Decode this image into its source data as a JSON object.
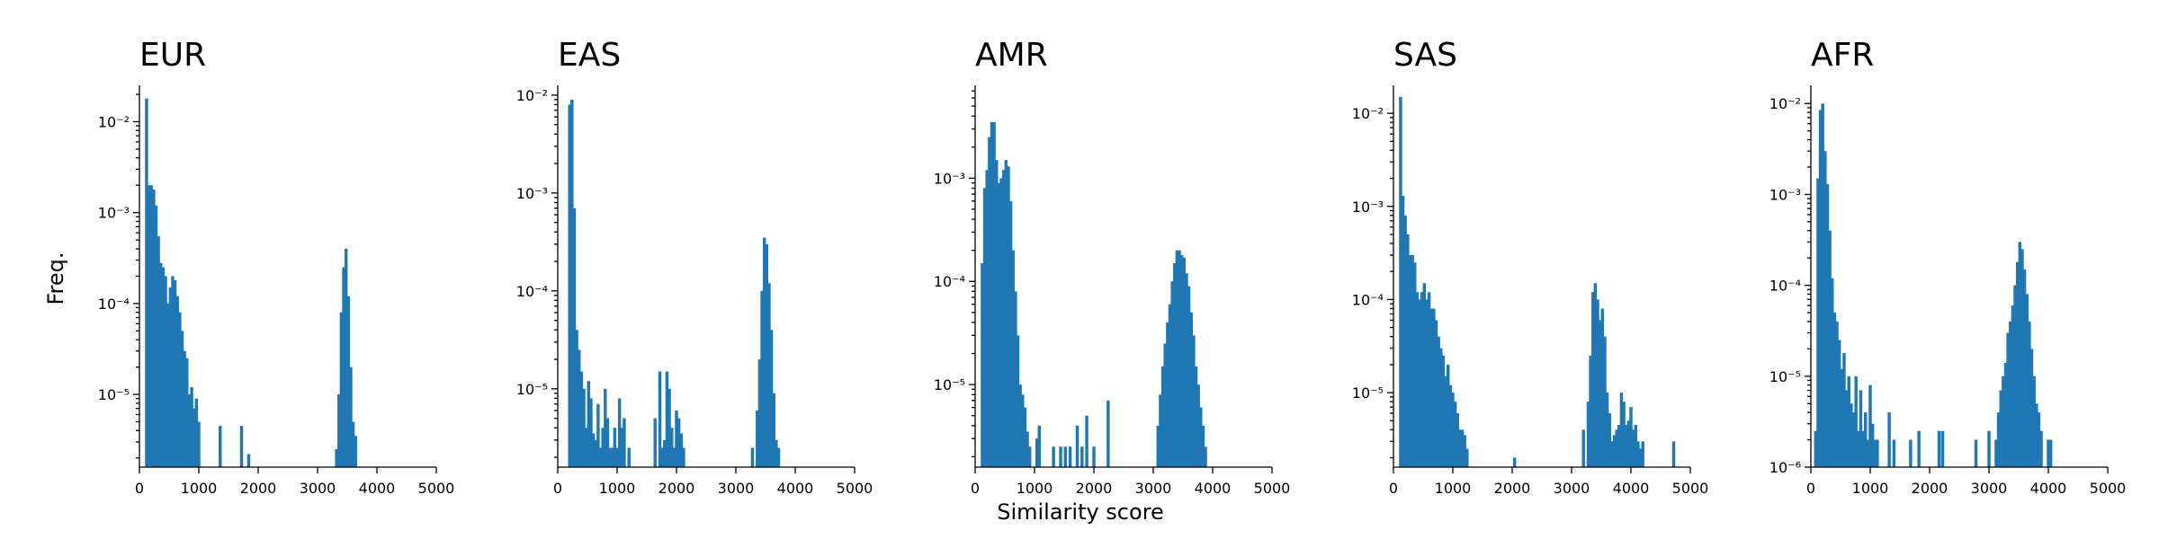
{
  "figure": {
    "xlabel": "Similarity score",
    "ylabel": "Freq.",
    "bar_color": "#1f77b4"
  },
  "chart_data": [
    {
      "type": "bar",
      "title": "EUR",
      "xlim": [
        0,
        5000
      ],
      "x_ticks": [
        "0",
        "1000",
        "2000",
        "3000",
        "4000",
        "5000"
      ],
      "y_scale": "log",
      "ylim_log10": [
        -5.8,
        -1.6
      ],
      "y_ticks": [
        {
          "exp": -2,
          "label": "10⁻²"
        },
        {
          "exp": -3,
          "label": "10⁻³"
        },
        {
          "exp": -4,
          "label": "10⁻⁴"
        },
        {
          "exp": -5,
          "label": "10⁻⁵"
        }
      ],
      "bins": [
        [
          100,
          0.018
        ],
        [
          140,
          0.002
        ],
        [
          180,
          0.002
        ],
        [
          220,
          0.0018
        ],
        [
          260,
          0.0012
        ],
        [
          300,
          0.00055
        ],
        [
          340,
          0.00028
        ],
        [
          380,
          0.00025
        ],
        [
          420,
          0.0002
        ],
        [
          460,
          0.0001
        ],
        [
          500,
          0.00015
        ],
        [
          540,
          0.0002
        ],
        [
          580,
          0.00018
        ],
        [
          620,
          0.00012
        ],
        [
          660,
          8e-05
        ],
        [
          700,
          5e-05
        ],
        [
          740,
          3e-05
        ],
        [
          780,
          2.5e-05
        ],
        [
          820,
          1e-05
        ],
        [
          860,
          1.2e-05
        ],
        [
          900,
          7e-06
        ],
        [
          940,
          9e-06
        ],
        [
          980,
          5e-06
        ],
        [
          1340,
          4.5e-06
        ],
        [
          1700,
          4.5e-06
        ],
        [
          1820,
          2.2e-06
        ],
        [
          3300,
          2.5e-06
        ],
        [
          3340,
          1e-05
        ],
        [
          3380,
          8e-05
        ],
        [
          3420,
          0.00025
        ],
        [
          3460,
          0.0004
        ],
        [
          3500,
          0.00012
        ],
        [
          3540,
          2e-05
        ],
        [
          3580,
          5e-06
        ],
        [
          3620,
          3.5e-06
        ]
      ]
    },
    {
      "type": "bar",
      "title": "EAS",
      "xlim": [
        0,
        5000
      ],
      "x_ticks": [
        "0",
        "1000",
        "2000",
        "3000",
        "4000",
        "5000"
      ],
      "y_scale": "log",
      "ylim_log10": [
        -5.8,
        -1.9
      ],
      "y_ticks": [
        {
          "exp": -2,
          "label": "10⁻²"
        },
        {
          "exp": -3,
          "label": "10⁻³"
        },
        {
          "exp": -4,
          "label": "10⁻⁴"
        },
        {
          "exp": -5,
          "label": "10⁻⁵"
        }
      ],
      "bins": [
        [
          180,
          0.008
        ],
        [
          220,
          0.009
        ],
        [
          260,
          0.0007
        ],
        [
          300,
          4e-05
        ],
        [
          340,
          2.5e-05
        ],
        [
          380,
          1.5e-05
        ],
        [
          420,
          1e-05
        ],
        [
          460,
          4e-06
        ],
        [
          500,
          1.2e-05
        ],
        [
          540,
          8e-06
        ],
        [
          580,
          3.5e-06
        ],
        [
          620,
          3e-06
        ],
        [
          660,
          7e-06
        ],
        [
          700,
          2.5e-06
        ],
        [
          740,
          4e-06
        ],
        [
          780,
          1e-05
        ],
        [
          820,
          5e-06
        ],
        [
          860,
          2.5e-06
        ],
        [
          900,
          2.5e-06
        ],
        [
          940,
          4e-06
        ],
        [
          980,
          2.5e-06
        ],
        [
          1020,
          8e-06
        ],
        [
          1060,
          4e-06
        ],
        [
          1100,
          5e-06
        ],
        [
          1180,
          2.5e-06
        ],
        [
          1620,
          5e-06
        ],
        [
          1700,
          1.5e-05
        ],
        [
          1740,
          2.5e-06
        ],
        [
          1780,
          3e-06
        ],
        [
          1820,
          1.5e-05
        ],
        [
          1860,
          1e-05
        ],
        [
          1900,
          4e-06
        ],
        [
          1940,
          2.5e-06
        ],
        [
          1980,
          6e-06
        ],
        [
          2020,
          5e-06
        ],
        [
          2060,
          3.5e-06
        ],
        [
          2100,
          2.5e-06
        ],
        [
          3260,
          2.5e-06
        ],
        [
          3340,
          6e-06
        ],
        [
          3380,
          2e-05
        ],
        [
          3420,
          0.0001
        ],
        [
          3460,
          0.00035
        ],
        [
          3500,
          0.0003
        ],
        [
          3540,
          0.00012
        ],
        [
          3580,
          4e-05
        ],
        [
          3620,
          9e-06
        ],
        [
          3660,
          3e-06
        ],
        [
          3700,
          2.5e-06
        ]
      ]
    },
    {
      "type": "bar",
      "title": "AMR",
      "xlim": [
        0,
        5000
      ],
      "x_ticks": [
        "0",
        "1000",
        "2000",
        "3000",
        "4000",
        "5000"
      ],
      "y_scale": "log",
      "ylim_log10": [
        -5.8,
        -2.1
      ],
      "y_ticks": [
        {
          "exp": -3,
          "label": "10⁻³"
        },
        {
          "exp": -4,
          "label": "10⁻⁴"
        },
        {
          "exp": -5,
          "label": "10⁻⁵"
        }
      ],
      "bins": [
        [
          100,
          0.00015
        ],
        [
          140,
          0.0008
        ],
        [
          180,
          0.0012
        ],
        [
          220,
          0.0025
        ],
        [
          260,
          0.0035
        ],
        [
          300,
          0.0035
        ],
        [
          340,
          0.0015
        ],
        [
          380,
          0.0009
        ],
        [
          420,
          0.001
        ],
        [
          460,
          0.0012
        ],
        [
          500,
          0.0015
        ],
        [
          540,
          0.0013
        ],
        [
          580,
          0.0006
        ],
        [
          620,
          0.0002
        ],
        [
          660,
          8e-05
        ],
        [
          700,
          3e-05
        ],
        [
          740,
          1e-05
        ],
        [
          780,
          8e-06
        ],
        [
          820,
          6e-06
        ],
        [
          860,
          3.5e-06
        ],
        [
          900,
          2.5e-06
        ],
        [
          1020,
          3e-06
        ],
        [
          1060,
          4e-06
        ],
        [
          1300,
          2.5e-06
        ],
        [
          1420,
          2.5e-06
        ],
        [
          1500,
          2.5e-06
        ],
        [
          1580,
          2.5e-06
        ],
        [
          1700,
          4e-06
        ],
        [
          1780,
          2.5e-06
        ],
        [
          1860,
          5e-06
        ],
        [
          1980,
          2.5e-06
        ],
        [
          2220,
          7e-06
        ],
        [
          3060,
          4e-06
        ],
        [
          3100,
          8e-06
        ],
        [
          3140,
          1.5e-05
        ],
        [
          3180,
          2.5e-05
        ],
        [
          3220,
          4e-05
        ],
        [
          3260,
          6e-05
        ],
        [
          3300,
          0.0001
        ],
        [
          3340,
          0.00015
        ],
        [
          3380,
          0.0002
        ],
        [
          3420,
          0.0002
        ],
        [
          3460,
          0.00018
        ],
        [
          3500,
          0.00017
        ],
        [
          3540,
          0.00012
        ],
        [
          3580,
          9e-05
        ],
        [
          3620,
          5e-05
        ],
        [
          3660,
          3e-05
        ],
        [
          3700,
          1.5e-05
        ],
        [
          3740,
          1e-05
        ],
        [
          3780,
          6e-06
        ],
        [
          3820,
          4e-06
        ],
        [
          3860,
          2.5e-06
        ]
      ]
    },
    {
      "type": "bar",
      "title": "SAS",
      "xlim": [
        0,
        5000
      ],
      "x_ticks": [
        "0",
        "1000",
        "2000",
        "3000",
        "4000",
        "5000"
      ],
      "y_scale": "log",
      "ylim_log10": [
        -5.8,
        -1.7
      ],
      "y_ticks": [
        {
          "exp": -2,
          "label": "10⁻²"
        },
        {
          "exp": -3,
          "label": "10⁻³"
        },
        {
          "exp": -4,
          "label": "10⁻⁴"
        },
        {
          "exp": -5,
          "label": "10⁻⁵"
        }
      ],
      "bins": [
        [
          100,
          0.015
        ],
        [
          140,
          0.0013
        ],
        [
          180,
          0.0008
        ],
        [
          220,
          0.0005
        ],
        [
          260,
          0.0003
        ],
        [
          300,
          0.0003
        ],
        [
          340,
          0.00025
        ],
        [
          380,
          0.00012
        ],
        [
          420,
          0.0001
        ],
        [
          460,
          0.00012
        ],
        [
          500,
          0.00015
        ],
        [
          540,
          0.0001
        ],
        [
          580,
          0.00012
        ],
        [
          620,
          8e-05
        ],
        [
          660,
          8e-05
        ],
        [
          700,
          6e-05
        ],
        [
          740,
          4e-05
        ],
        [
          780,
          3e-05
        ],
        [
          820,
          2.5e-05
        ],
        [
          860,
          1.5e-05
        ],
        [
          900,
          2e-05
        ],
        [
          940,
          1.2e-05
        ],
        [
          980,
          1e-05
        ],
        [
          1020,
          8e-06
        ],
        [
          1060,
          6e-06
        ],
        [
          1100,
          4e-06
        ],
        [
          1140,
          4e-06
        ],
        [
          1180,
          3.5e-06
        ],
        [
          1220,
          2.5e-06
        ],
        [
          2020,
          2e-06
        ],
        [
          3180,
          4e-06
        ],
        [
          3260,
          8e-06
        ],
        [
          3300,
          2.5e-05
        ],
        [
          3340,
          0.00012
        ],
        [
          3380,
          0.00015
        ],
        [
          3420,
          0.0001
        ],
        [
          3460,
          6e-05
        ],
        [
          3500,
          8e-05
        ],
        [
          3540,
          4e-05
        ],
        [
          3580,
          1e-05
        ],
        [
          3620,
          6e-06
        ],
        [
          3660,
          3e-06
        ],
        [
          3700,
          3.5e-06
        ],
        [
          3740,
          4e-06
        ],
        [
          3780,
          4.5e-06
        ],
        [
          3820,
          1e-05
        ],
        [
          3860,
          8e-06
        ],
        [
          3900,
          4.5e-06
        ],
        [
          3940,
          5e-06
        ],
        [
          3980,
          7e-06
        ],
        [
          4020,
          4e-06
        ],
        [
          4060,
          4.5e-06
        ],
        [
          4100,
          3e-06
        ],
        [
          4140,
          2.5e-06
        ],
        [
          4180,
          3e-06
        ],
        [
          4700,
          3e-06
        ]
      ]
    },
    {
      "type": "bar",
      "title": "AFR",
      "xlim": [
        0,
        5000
      ],
      "x_ticks": [
        "0",
        "1000",
        "2000",
        "3000",
        "4000",
        "5000"
      ],
      "y_scale": "log",
      "ylim_log10": [
        -6.0,
        -1.8
      ],
      "y_ticks": [
        {
          "exp": -2,
          "label": "10⁻²"
        },
        {
          "exp": -3,
          "label": "10⁻³"
        },
        {
          "exp": -4,
          "label": "10⁻⁴"
        },
        {
          "exp": -5,
          "label": "10⁻⁵"
        },
        {
          "exp": -6,
          "label": "10⁻⁶"
        }
      ],
      "bins": [
        [
          60,
          2.5e-06
        ],
        [
          100,
          0.0015
        ],
        [
          140,
          0.0085
        ],
        [
          180,
          0.01
        ],
        [
          220,
          0.003
        ],
        [
          260,
          0.0013
        ],
        [
          300,
          0.0004
        ],
        [
          340,
          0.00012
        ],
        [
          380,
          5e-05
        ],
        [
          420,
          4e-05
        ],
        [
          460,
          2.5e-05
        ],
        [
          500,
          1.2e-05
        ],
        [
          540,
          1.8e-05
        ],
        [
          580,
          7e-06
        ],
        [
          620,
          1e-05
        ],
        [
          660,
          5e-06
        ],
        [
          700,
          4e-06
        ],
        [
          740,
          1e-05
        ],
        [
          780,
          2.5e-06
        ],
        [
          820,
          7e-06
        ],
        [
          860,
          2.5e-06
        ],
        [
          900,
          4e-06
        ],
        [
          940,
          2e-06
        ],
        [
          980,
          8e-06
        ],
        [
          1020,
          3e-06
        ],
        [
          1060,
          2e-06
        ],
        [
          1100,
          2e-06
        ],
        [
          1300,
          4e-06
        ],
        [
          1380,
          2e-06
        ],
        [
          1660,
          2e-06
        ],
        [
          1800,
          2.5e-06
        ],
        [
          2140,
          2.5e-06
        ],
        [
          2200,
          2.5e-06
        ],
        [
          2760,
          2e-06
        ],
        [
          2980,
          2.5e-06
        ],
        [
          3100,
          2e-06
        ],
        [
          3140,
          4e-06
        ],
        [
          3180,
          7e-06
        ],
        [
          3220,
          1e-05
        ],
        [
          3260,
          1.4e-05
        ],
        [
          3300,
          3e-05
        ],
        [
          3340,
          4e-05
        ],
        [
          3380,
          6e-05
        ],
        [
          3420,
          0.0001
        ],
        [
          3460,
          0.00018
        ],
        [
          3500,
          0.0003
        ],
        [
          3540,
          0.00025
        ],
        [
          3580,
          0.00015
        ],
        [
          3620,
          8e-05
        ],
        [
          3660,
          4e-05
        ],
        [
          3700,
          2e-05
        ],
        [
          3740,
          1e-05
        ],
        [
          3780,
          5e-06
        ],
        [
          3820,
          4e-06
        ],
        [
          3860,
          2.5e-06
        ],
        [
          3980,
          2e-06
        ],
        [
          4020,
          2e-06
        ]
      ]
    }
  ]
}
